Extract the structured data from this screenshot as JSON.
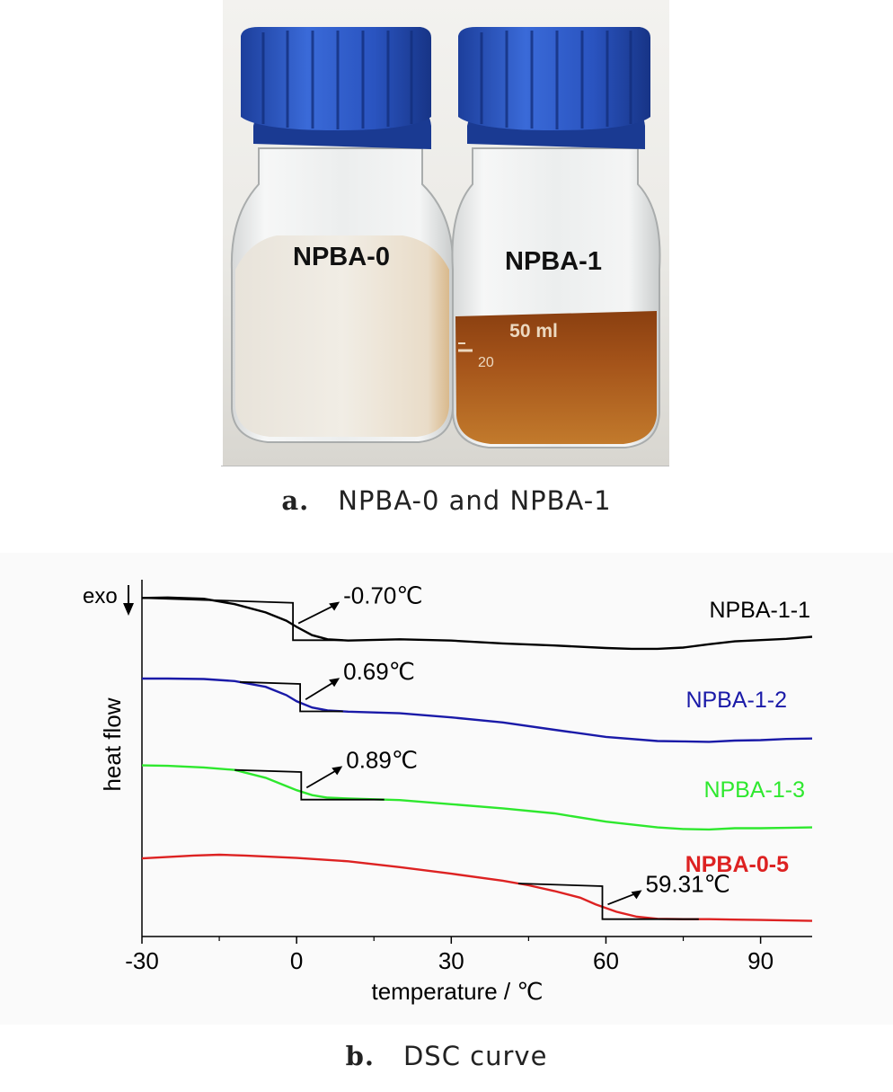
{
  "figure_a": {
    "caption_letter": "a.",
    "caption_text": "NPBA-0 and NPBA-1",
    "left_bottle_label": "NPBA-0",
    "right_bottle_label": "NPBA-1",
    "volume_mark": "50 ml",
    "grad_mark": "20"
  },
  "figure_b": {
    "caption_letter": "b.",
    "caption_text": "DSC curve"
  },
  "chart_data": {
    "type": "line",
    "xlabel": "temperature / ℃",
    "ylabel": "heat flow",
    "exo_label": "exo",
    "xlim": [
      -30,
      100
    ],
    "xticks": [
      -30,
      0,
      30,
      60,
      90
    ],
    "xtick_labels": [
      "-30",
      "0",
      "30",
      "60",
      "90"
    ],
    "y_values_shown": false,
    "series": [
      {
        "name": "NPBA-1-1",
        "color": "#000000",
        "x": [
          -30,
          -25,
          -18,
          -12,
          -6,
          -2,
          0,
          3,
          6,
          10,
          20,
          30,
          40,
          50,
          60,
          65,
          70,
          75,
          80,
          85,
          90,
          95,
          100
        ],
        "y": [
          0.5,
          0.4,
          0.7,
          2.0,
          4.0,
          6.0,
          7.5,
          9.5,
          10.5,
          10.8,
          10.5,
          10.8,
          11.5,
          12.0,
          12.6,
          12.8,
          12.8,
          12.5,
          11.7,
          11.0,
          10.7,
          10.4,
          9.9
        ]
      },
      {
        "name": "NPBA-1-2",
        "color": "#1a1aa8",
        "x": [
          -30,
          -25,
          -18,
          -12,
          -6,
          -2,
          0,
          3,
          6,
          10,
          20,
          30,
          40,
          50,
          60,
          70,
          75,
          80,
          85,
          90,
          95,
          100
        ],
        "y": [
          20.0,
          20.0,
          20.1,
          20.6,
          22.0,
          24.0,
          25.5,
          27.0,
          27.7,
          28.0,
          28.4,
          29.4,
          30.6,
          32.4,
          34.1,
          35.1,
          35.2,
          35.3,
          35.0,
          34.9,
          34.6,
          34.5
        ]
      },
      {
        "name": "NPBA-1-3",
        "color": "#2ee82e",
        "x": [
          -30,
          -25,
          -18,
          -12,
          -6,
          -2,
          0,
          3,
          6,
          10,
          20,
          30,
          40,
          50,
          60,
          70,
          75,
          80,
          85,
          90,
          95,
          100
        ],
        "y": [
          41.0,
          41.1,
          41.5,
          42.1,
          44.0,
          46.0,
          47.0,
          48.2,
          48.8,
          49.0,
          49.4,
          50.4,
          51.4,
          52.6,
          54.6,
          56.0,
          56.4,
          56.5,
          56.2,
          56.2,
          56.1,
          56.0
        ]
      },
      {
        "name": "NPBA-0-5",
        "color": "#dd2222",
        "bold_label": true,
        "x": [
          -30,
          -20,
          -15,
          -10,
          0,
          10,
          20,
          30,
          40,
          45,
          50,
          55,
          58,
          62,
          66,
          70,
          75,
          80,
          85,
          90,
          95,
          100
        ],
        "y": [
          63.5,
          62.8,
          62.6,
          62.8,
          63.4,
          64.2,
          65.6,
          67.2,
          68.9,
          70.0,
          71.4,
          73.0,
          74.6,
          76.4,
          77.6,
          78.1,
          78.2,
          78.2,
          78.3,
          78.4,
          78.5,
          78.6
        ]
      }
    ],
    "annotations": [
      {
        "text": "-0.70℃",
        "x": -0.7
      },
      {
        "text": "0.69℃",
        "x": 0.69
      },
      {
        "text": "0.89℃",
        "x": 0.89
      },
      {
        "text": "59.31℃",
        "x": 59.31
      }
    ]
  }
}
